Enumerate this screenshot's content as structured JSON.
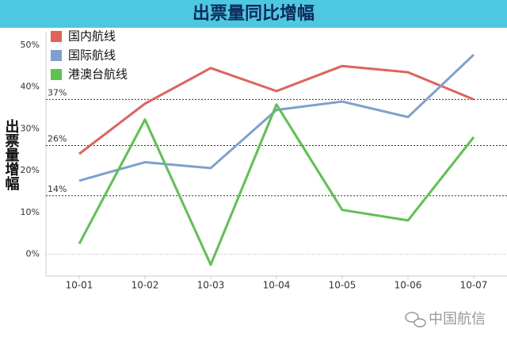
{
  "chart_data": {
    "type": "line",
    "title": "出票量同比增幅",
    "y_label": "出票量增幅",
    "categories": [
      "10-01",
      "10-02",
      "10-03",
      "10-04",
      "10-05",
      "10-06",
      "10-07"
    ],
    "series": [
      {
        "name": "国内航线",
        "color": "#e0625a",
        "values": [
          24,
          36,
          44.5,
          39,
          45,
          43.5,
          37
        ]
      },
      {
        "name": "国际航线",
        "color": "#7f9fd0",
        "values": [
          17.6,
          22,
          20.6,
          34.5,
          36.5,
          32.8,
          47.7
        ]
      },
      {
        "name": "港澳台航线",
        "color": "#5cc44e",
        "values": [
          2.5,
          32.2,
          -2.5,
          35.8,
          10.6,
          8.1,
          28
        ]
      }
    ],
    "ylim": [
      -5,
      53
    ],
    "yticks": [
      {
        "value": 0,
        "label": "0%"
      },
      {
        "value": 10,
        "label": "10%"
      },
      {
        "value": 20,
        "label": "20%"
      },
      {
        "value": 30,
        "label": "30%"
      },
      {
        "value": 40,
        "label": "40%"
      },
      {
        "value": 50,
        "label": "50%"
      }
    ],
    "reference_lines": [
      {
        "value": 37,
        "label": "37%"
      },
      {
        "value": 26,
        "label": "26%"
      },
      {
        "value": 14,
        "label": "14%"
      }
    ],
    "legend": "top-left"
  },
  "watermark": "中国航信"
}
